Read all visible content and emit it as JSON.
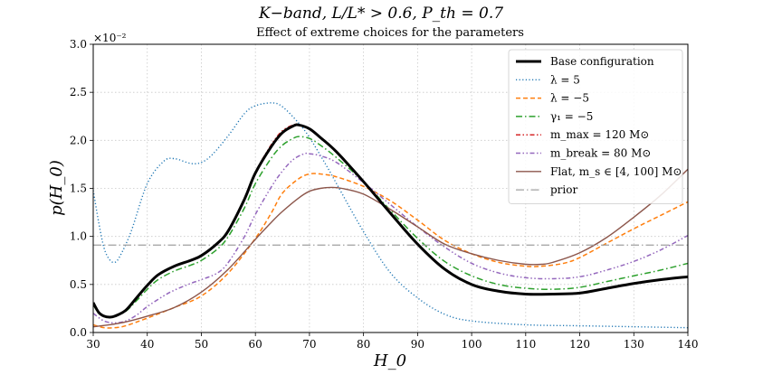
{
  "chart_data": {
    "type": "line",
    "title": "K−band, L/L* > 0.6, P_th = 0.7",
    "subtitle": "Effect of extreme choices for the parameters",
    "xlabel": "H_0",
    "ylabel": "p(H_0)",
    "y_multiplier_label": "×10⁻²",
    "xlim": [
      30,
      140
    ],
    "ylim": [
      0.0,
      3.0
    ],
    "xticks": [
      "30",
      "40",
      "50",
      "60",
      "70",
      "80",
      "90",
      "100",
      "110",
      "120",
      "130",
      "140"
    ],
    "yticks": [
      "0.0",
      "0.5",
      "1.0",
      "1.5",
      "2.0",
      "2.5",
      "3.0"
    ],
    "grid": true,
    "legend_position": "top-right",
    "series": [
      {
        "name": "λ = 5",
        "color": "#1f77b4",
        "style": "dotted",
        "x": [
          30,
          31,
          32,
          33,
          34,
          35,
          37,
          40,
          43,
          45,
          48,
          50,
          52,
          55,
          58,
          60,
          63,
          65,
          68,
          70,
          73,
          75,
          80,
          85,
          90,
          95,
          100,
          110,
          120,
          130,
          140
        ],
        "y": [
          1.48,
          1.15,
          0.88,
          0.76,
          0.73,
          0.8,
          1.05,
          1.55,
          1.78,
          1.81,
          1.76,
          1.77,
          1.85,
          2.05,
          2.28,
          2.36,
          2.39,
          2.35,
          2.18,
          2.03,
          1.75,
          1.55,
          1.05,
          0.62,
          0.36,
          0.19,
          0.12,
          0.08,
          0.07,
          0.06,
          0.05
        ]
      },
      {
        "name": "λ = −5",
        "color": "#ff7f0e",
        "style": "dashed",
        "x": [
          30,
          32,
          34,
          36,
          40,
          45,
          50,
          55,
          60,
          63,
          65,
          68,
          70,
          72,
          75,
          80,
          85,
          90,
          95,
          100,
          105,
          110,
          113,
          117,
          120,
          125,
          130,
          135,
          140
        ],
        "y": [
          0.08,
          0.05,
          0.05,
          0.07,
          0.15,
          0.26,
          0.38,
          0.62,
          0.98,
          1.25,
          1.45,
          1.6,
          1.65,
          1.65,
          1.62,
          1.52,
          1.37,
          1.17,
          0.96,
          0.82,
          0.73,
          0.69,
          0.69,
          0.72,
          0.78,
          0.93,
          1.08,
          1.22,
          1.36
        ]
      },
      {
        "name": "γ₁ = −5",
        "color": "#2ca02c",
        "style": "dashdot",
        "x": [
          30,
          31,
          32,
          33,
          34,
          36,
          38,
          40,
          42,
          45,
          48,
          50,
          53,
          55,
          58,
          60,
          63,
          65,
          67,
          68,
          70,
          72,
          75,
          80,
          85,
          90,
          95,
          100,
          105,
          110,
          115,
          120,
          125,
          130,
          135,
          140
        ],
        "y": [
          0.29,
          0.2,
          0.17,
          0.16,
          0.17,
          0.22,
          0.33,
          0.45,
          0.55,
          0.64,
          0.7,
          0.75,
          0.87,
          1.0,
          1.3,
          1.55,
          1.82,
          1.95,
          2.02,
          2.04,
          2.02,
          1.95,
          1.82,
          1.57,
          1.27,
          0.98,
          0.74,
          0.59,
          0.5,
          0.46,
          0.45,
          0.47,
          0.53,
          0.59,
          0.65,
          0.72
        ]
      },
      {
        "name": "m_max = 120 M⊙",
        "color": "#d62728",
        "style": "dashdotdot",
        "x": [
          30,
          31,
          32,
          33,
          34,
          36,
          38,
          40,
          42,
          45,
          48,
          50,
          53,
          55,
          58,
          60,
          63,
          65,
          67,
          68,
          70,
          72,
          75,
          80,
          85,
          90,
          95,
          100,
          105,
          110,
          115,
          120,
          125,
          130,
          135,
          140
        ],
        "y": [
          0.31,
          0.21,
          0.17,
          0.16,
          0.17,
          0.23,
          0.36,
          0.49,
          0.6,
          0.69,
          0.75,
          0.8,
          0.93,
          1.07,
          1.4,
          1.67,
          1.96,
          2.1,
          2.16,
          2.16,
          2.12,
          2.03,
          1.88,
          1.57,
          1.24,
          0.92,
          0.66,
          0.5,
          0.43,
          0.4,
          0.4,
          0.41,
          0.46,
          0.51,
          0.55,
          0.58
        ]
      },
      {
        "name": "m_break = 80 M⊙",
        "color": "#9467bd",
        "style": "dashdotdot",
        "x": [
          30,
          32,
          34,
          36,
          38,
          40,
          43,
          45,
          48,
          50,
          53,
          55,
          58,
          60,
          63,
          65,
          67,
          69,
          70,
          72,
          75,
          80,
          85,
          90,
          95,
          100,
          105,
          110,
          115,
          120,
          125,
          130,
          135,
          140
        ],
        "y": [
          0.2,
          0.12,
          0.1,
          0.12,
          0.18,
          0.27,
          0.38,
          0.44,
          0.51,
          0.55,
          0.62,
          0.73,
          1.0,
          1.23,
          1.52,
          1.68,
          1.8,
          1.86,
          1.86,
          1.84,
          1.77,
          1.56,
          1.33,
          1.1,
          0.89,
          0.72,
          0.62,
          0.57,
          0.56,
          0.58,
          0.65,
          0.74,
          0.86,
          1.01
        ]
      },
      {
        "name": "Flat, m_s ∈ [4, 100] M⊙",
        "color": "#8c564b",
        "style": "solid",
        "x": [
          30,
          33,
          36,
          40,
          45,
          50,
          55,
          60,
          63,
          65,
          68,
          70,
          72,
          74,
          76,
          80,
          85,
          90,
          95,
          100,
          105,
          110,
          113,
          115,
          120,
          125,
          130,
          135,
          140
        ],
        "y": [
          0.06,
          0.08,
          0.11,
          0.17,
          0.26,
          0.42,
          0.66,
          0.97,
          1.15,
          1.26,
          1.4,
          1.47,
          1.5,
          1.51,
          1.5,
          1.44,
          1.28,
          1.1,
          0.92,
          0.82,
          0.75,
          0.71,
          0.71,
          0.73,
          0.83,
          0.99,
          1.2,
          1.43,
          1.7
        ]
      },
      {
        "name": "prior",
        "color": "#a0a0a0",
        "style": "longdashdot",
        "x": [
          30,
          140
        ],
        "y": [
          0.91,
          0.91
        ]
      },
      {
        "name": "Base configuration",
        "color": "#000000",
        "style": "thick",
        "x": [
          30,
          31,
          32,
          33,
          34,
          36,
          38,
          40,
          42,
          45,
          48,
          50,
          53,
          55,
          58,
          60,
          63,
          65,
          67,
          68,
          70,
          72,
          75,
          80,
          85,
          90,
          95,
          100,
          105,
          110,
          115,
          120,
          125,
          130,
          135,
          140
        ],
        "y": [
          0.31,
          0.21,
          0.17,
          0.16,
          0.17,
          0.23,
          0.36,
          0.49,
          0.6,
          0.69,
          0.75,
          0.8,
          0.93,
          1.06,
          1.39,
          1.66,
          1.94,
          2.08,
          2.15,
          2.16,
          2.12,
          2.03,
          1.88,
          1.57,
          1.24,
          0.92,
          0.66,
          0.5,
          0.43,
          0.4,
          0.4,
          0.41,
          0.46,
          0.51,
          0.55,
          0.58
        ]
      }
    ],
    "legend_order": [
      "Base configuration",
      "λ = 5",
      "λ = −5",
      "γ₁ = −5",
      "m_max = 120 M⊙",
      "m_break = 80 M⊙",
      "Flat, m_s ∈ [4, 100] M⊙",
      "prior"
    ]
  }
}
